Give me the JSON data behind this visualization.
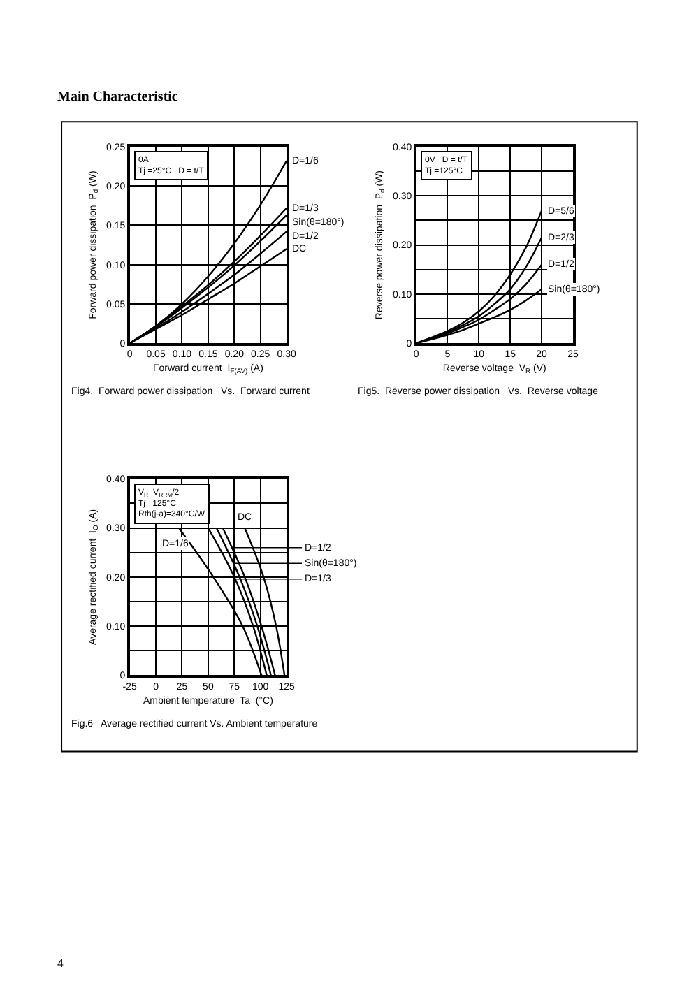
{
  "chart_data": [
    {
      "type": "line",
      "title": "Fig4.  Forward power dissipation   Vs.  Forward current",
      "xlabel": "Forward current  I$_{F(AV)}$ (A)",
      "ylabel": "Forward power dissipation  P$_{d}$ (W)",
      "x": [
        0,
        0.05,
        0.1,
        0.15,
        0.2,
        0.25,
        0.3
      ],
      "series": [
        {
          "name": "D=1/6",
          "color": "#000000",
          "values": [
            0,
            0.022,
            0.05,
            0.085,
            0.127,
            0.176,
            0.232
          ]
        },
        {
          "name": "D=1/3",
          "color": "#000000",
          "values": [
            0,
            0.022,
            0.047,
            0.074,
            0.104,
            0.137,
            0.172
          ]
        },
        {
          "name": "Sin(θ=180°)",
          "color": "#000000",
          "values": [
            0,
            0.021,
            0.045,
            0.071,
            0.099,
            0.13,
            0.163
          ]
        },
        {
          "name": "D=1/2",
          "color": "#000000",
          "values": [
            0,
            0.019,
            0.04,
            0.063,
            0.087,
            0.114,
            0.142
          ]
        },
        {
          "name": "DC",
          "color": "#000000",
          "values": [
            0,
            0.018,
            0.036,
            0.056,
            0.076,
            0.098,
            0.12
          ]
        }
      ],
      "xlim": [
        0,
        0.3
      ],
      "ylim": [
        0,
        0.25
      ],
      "xticks": [
        0,
        0.05,
        {
          "value": 0.1,
          "label": "0.10"
        },
        0.15,
        {
          "value": 0.2,
          "label": "0.20"
        },
        0.25,
        {
          "value": 0.3,
          "label": "0.30"
        }
      ],
      "yticks": [
        0,
        0.05,
        {
          "value": 0.1,
          "label": "0.10"
        },
        0.15,
        {
          "value": 0.2,
          "label": "0.20"
        },
        0.25
      ],
      "grid": true,
      "line_style": "solid",
      "annotations": [
        "Main Characteristic",
        "0A",
        "Tj =25°C",
        "D = t/T",
        "4"
      ]
    },
    {
      "type": "line",
      "title": "Fig5.  Reverse power dissipation   Vs.  Reverse voltage",
      "xlabel": "Reverse voltage  V$_{R}$ (V)",
      "ylabel": "Reverse power dissipation  P$_{d}$ (W)",
      "x": [
        0,
        2.5,
        5,
        7.5,
        10,
        12.5,
        15,
        17.5,
        20
      ],
      "series": [
        {
          "name": "D=5/6",
          "color": "#000000",
          "values": [
            0,
            0.012,
            0.025,
            0.042,
            0.065,
            0.097,
            0.14,
            0.195,
            0.27
          ]
        },
        {
          "name": "D=2/3",
          "color": "#000000",
          "values": [
            0,
            0.011,
            0.022,
            0.037,
            0.055,
            0.08,
            0.11,
            0.155,
            0.215
          ]
        },
        {
          "name": "D=1/2",
          "color": "#000000",
          "values": [
            0,
            0.01,
            0.02,
            0.033,
            0.048,
            0.068,
            0.09,
            0.12,
            0.16
          ]
        },
        {
          "name": "Sin(θ=180°)",
          "color": "#000000",
          "values": [
            0,
            0.008,
            0.017,
            0.027,
            0.04,
            0.053,
            0.068,
            0.087,
            0.11
          ]
        }
      ],
      "xlim": [
        0,
        25
      ],
      "ylim": [
        0,
        0.4
      ],
      "xticks": [
        0,
        5,
        10,
        15,
        20,
        25
      ],
      "yticks": [
        0,
        {
          "value": 0.05,
          "label": null
        },
        {
          "value": 0.1,
          "label": "0.10"
        },
        {
          "value": 0.15,
          "label": null
        },
        {
          "value": 0.2,
          "label": "0.20"
        },
        {
          "value": 0.25,
          "label": null
        },
        {
          "value": 0.3,
          "label": "0.30"
        },
        {
          "value": 0.35,
          "label": null
        },
        {
          "value": 0.4,
          "label": "0.40"
        }
      ],
      "grid": true,
      "line_style": "solid",
      "annotations": [
        "0V",
        "Tj =125°C",
        "D = t/T"
      ]
    },
    {
      "type": "line",
      "title": "Fig.6   Average rectified current Vs. Ambient temperature",
      "xlabel": "Ambient temperature  Ta  (°C)",
      "ylabel": "Average rectified current  I$_{O}$ (A)",
      "series": [
        {
          "name": "D=1/6",
          "color": "#000000",
          "x": [
            22,
            55,
            83,
            101
          ],
          "values": [
            0.3,
            0.2,
            0.1,
            0
          ]
        },
        {
          "name": "D=1/3",
          "color": "#000000",
          "x": [
            50,
            75,
            93,
            106
          ],
          "values": [
            0.3,
            0.2,
            0.1,
            0
          ]
        },
        {
          "name": "Sin(θ=180°)",
          "color": "#000000",
          "x": [
            58,
            80,
            97,
            110
          ],
          "values": [
            0.3,
            0.2,
            0.1,
            0
          ]
        },
        {
          "name": "D=1/2",
          "color": "#000000",
          "x": [
            64,
            85,
            101,
            114
          ],
          "values": [
            0.3,
            0.2,
            0.1,
            0
          ]
        },
        {
          "name": "DC",
          "color": "#000000",
          "x": [
            85,
            103,
            115,
            123
          ],
          "values": [
            0.3,
            0.2,
            0.1,
            0
          ]
        }
      ],
      "xlim": [
        -25,
        125
      ],
      "ylim": [
        0,
        0.4
      ],
      "xticks": [
        -25,
        0,
        25,
        50,
        75,
        100,
        125
      ],
      "yticks": [
        0,
        {
          "value": 0.05,
          "label": null
        },
        {
          "value": 0.1,
          "label": "0.10"
        },
        {
          "value": 0.15,
          "label": null
        },
        {
          "value": 0.2,
          "label": "0.20"
        },
        {
          "value": 0.25,
          "label": null
        },
        {
          "value": 0.3,
          "label": "0.30"
        },
        {
          "value": 0.35,
          "label": null
        },
        {
          "value": 0.4,
          "label": "0.40"
        }
      ],
      "grid": true,
      "line_style": "solid",
      "annotations": [
        "V$_{R}$=V$_{RRM}$/2",
        "Tj =125°C",
        "Rth(j-a)=340°C/W"
      ]
    }
  ]
}
